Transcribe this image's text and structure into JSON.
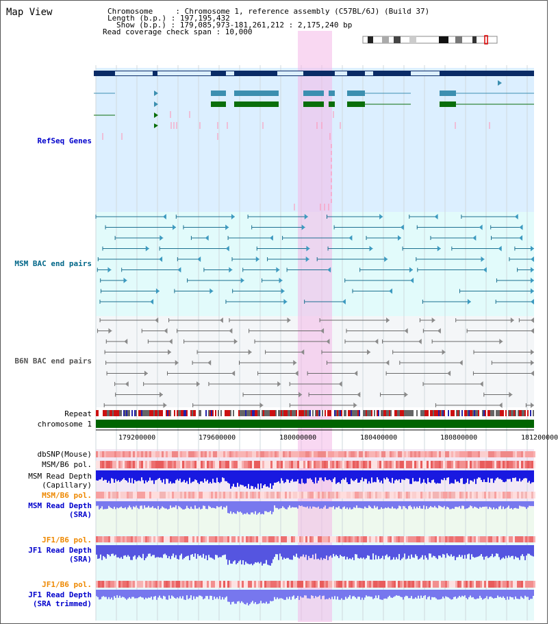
{
  "page": {
    "title": "Map View"
  },
  "header": {
    "info_lines": [
      "Chromosome     : Chromosome 1, reference assembly (C57BL/6J) (Build 37)",
      "Length (b.p.) : 197,195,432",
      "Show (b.p.) : 179,085,973-181,261,212 : 2,175,240 bp",
      "Read coverage check span : 10,000"
    ]
  },
  "tracks": {
    "refseq": {
      "label": "RefSeq Genes",
      "color": "#0000cc"
    },
    "msm_bac": {
      "label": "MSM BAC end pairs",
      "color": "#006688"
    },
    "b6n_bac": {
      "label": "B6N BAC end pairs",
      "color": "#555555"
    },
    "repeat": {
      "label": "Repeat"
    },
    "chromosome": {
      "label": "chromosome 1"
    },
    "dbsnp": {
      "label": "dbSNP(Mouse)"
    },
    "msm_b6_pol_1": {
      "label": "MSM/B6 pol."
    },
    "msm_read_depth_cap": {
      "label": "MSM Read Depth\n(Capillary)"
    },
    "msm_b6_pol_2": {
      "label": "MSM/B6 pol.",
      "color": "#ee8800"
    },
    "msm_read_depth_sra": {
      "label": "MSM Read Depth\n(SRA)",
      "color": "#0000cc"
    },
    "jf1_b6_pol_1": {
      "label": "JF1/B6 pol.",
      "color": "#ee8800"
    },
    "jf1_read_depth_sra": {
      "label": "JF1 Read Depth\n(SRA)",
      "color": "#0000cc"
    },
    "jf1_b6_pol_2": {
      "label": "JF1/B6 pol.",
      "color": "#ee8800"
    },
    "jf1_read_depth_trim": {
      "label": "JF1 Read Depth\n(SRA trimmed)",
      "color": "#0000cc"
    }
  },
  "axis": {
    "ticks": [
      "179200000",
      "179600000",
      "180000000",
      "180400000",
      "180800000",
      "181200000"
    ]
  },
  "colors": {
    "refseq_bg": "#dcefff",
    "msm_bg": "#e2fbfb",
    "b6n_bg": "#f4f6f8",
    "highlight": "#f4b8e8",
    "gene_dark": "#0a2b66",
    "gene_mid": "#3c8fb0",
    "gene_green": "#0a6e0a",
    "chromosome_green": "#006400"
  }
}
